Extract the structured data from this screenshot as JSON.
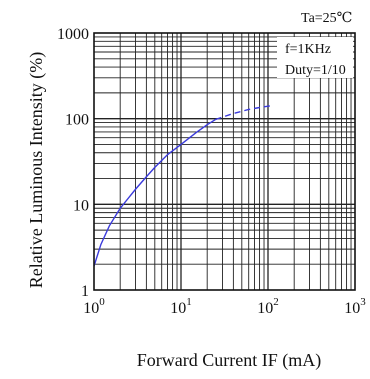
{
  "chart_data": {
    "type": "line",
    "title": "",
    "condition_label": "Ta=25℃",
    "xlabel": "Forward Current IF (mA)",
    "ylabel": "Relative Luminous Intensity (%)",
    "x_scale": "log",
    "y_scale": "log",
    "xlim": [
      1,
      1000
    ],
    "ylim": [
      1,
      1000
    ],
    "x_ticks": [
      {
        "base": "10",
        "exp": "0",
        "value": 1
      },
      {
        "base": "10",
        "exp": "1",
        "value": 10
      },
      {
        "base": "10",
        "exp": "2",
        "value": 100
      },
      {
        "base": "10",
        "exp": "3",
        "value": 1000
      }
    ],
    "y_ticks": [
      {
        "label": "1",
        "value": 1
      },
      {
        "label": "10",
        "value": 10
      },
      {
        "label": "100",
        "value": 100
      },
      {
        "label": "1000",
        "value": 1000
      }
    ],
    "grid": true,
    "annotations": [
      "f=1KHz",
      "Duty=1/10"
    ],
    "series": [
      {
        "line_style": "solid",
        "color": "#3b3bdc",
        "points": [
          {
            "x": 1,
            "y": 1.9
          },
          {
            "x": 1.2,
            "y": 3.4
          },
          {
            "x": 1.5,
            "y": 5.6
          },
          {
            "x": 2,
            "y": 9
          },
          {
            "x": 3,
            "y": 15
          },
          {
            "x": 4,
            "y": 21
          },
          {
            "x": 5,
            "y": 27
          },
          {
            "x": 7,
            "y": 38
          },
          {
            "x": 10,
            "y": 50
          },
          {
            "x": 15,
            "y": 69
          },
          {
            "x": 20,
            "y": 85
          },
          {
            "x": 25,
            "y": 98
          }
        ]
      },
      {
        "line_style": "dashed",
        "color": "#3b3bdc",
        "points": [
          {
            "x": 25,
            "y": 98
          },
          {
            "x": 40,
            "y": 115
          },
          {
            "x": 60,
            "y": 128
          },
          {
            "x": 80,
            "y": 135
          },
          {
            "x": 110,
            "y": 142
          }
        ]
      }
    ]
  }
}
